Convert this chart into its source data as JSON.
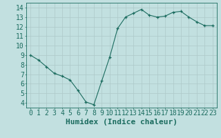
{
  "x": [
    0,
    1,
    2,
    3,
    4,
    5,
    6,
    7,
    8,
    9,
    10,
    11,
    12,
    13,
    14,
    15,
    16,
    17,
    18,
    19,
    20,
    21,
    22,
    23
  ],
  "y": [
    9.0,
    8.5,
    7.8,
    7.1,
    6.8,
    6.4,
    5.3,
    4.1,
    3.8,
    6.3,
    8.8,
    11.8,
    13.0,
    13.4,
    13.8,
    13.2,
    13.0,
    13.1,
    13.5,
    13.6,
    13.0,
    12.5,
    12.1,
    12.1
  ],
  "xlabel": "Humidex (Indice chaleur)",
  "ylim": [
    3.5,
    14.5
  ],
  "xlim": [
    -0.5,
    23.5
  ],
  "yticks": [
    4,
    5,
    6,
    7,
    8,
    9,
    10,
    11,
    12,
    13,
    14
  ],
  "xticks": [
    0,
    1,
    2,
    3,
    4,
    5,
    6,
    7,
    8,
    9,
    10,
    11,
    12,
    13,
    14,
    15,
    16,
    17,
    18,
    19,
    20,
    21,
    22,
    23
  ],
  "xtick_labels": [
    "0",
    "1",
    "2",
    "3",
    "4",
    "5",
    "6",
    "7",
    "8",
    "9",
    "10",
    "11",
    "12",
    "13",
    "14",
    "15",
    "16",
    "17",
    "18",
    "19",
    "20",
    "21",
    "22",
    "23"
  ],
  "line_color": "#1a6b5e",
  "marker": "+",
  "bg_color": "#c2e0e0",
  "grid_color": "#adc8c8",
  "font_color": "#1a6b5e",
  "xlabel_fontsize": 8,
  "tick_fontsize": 7
}
